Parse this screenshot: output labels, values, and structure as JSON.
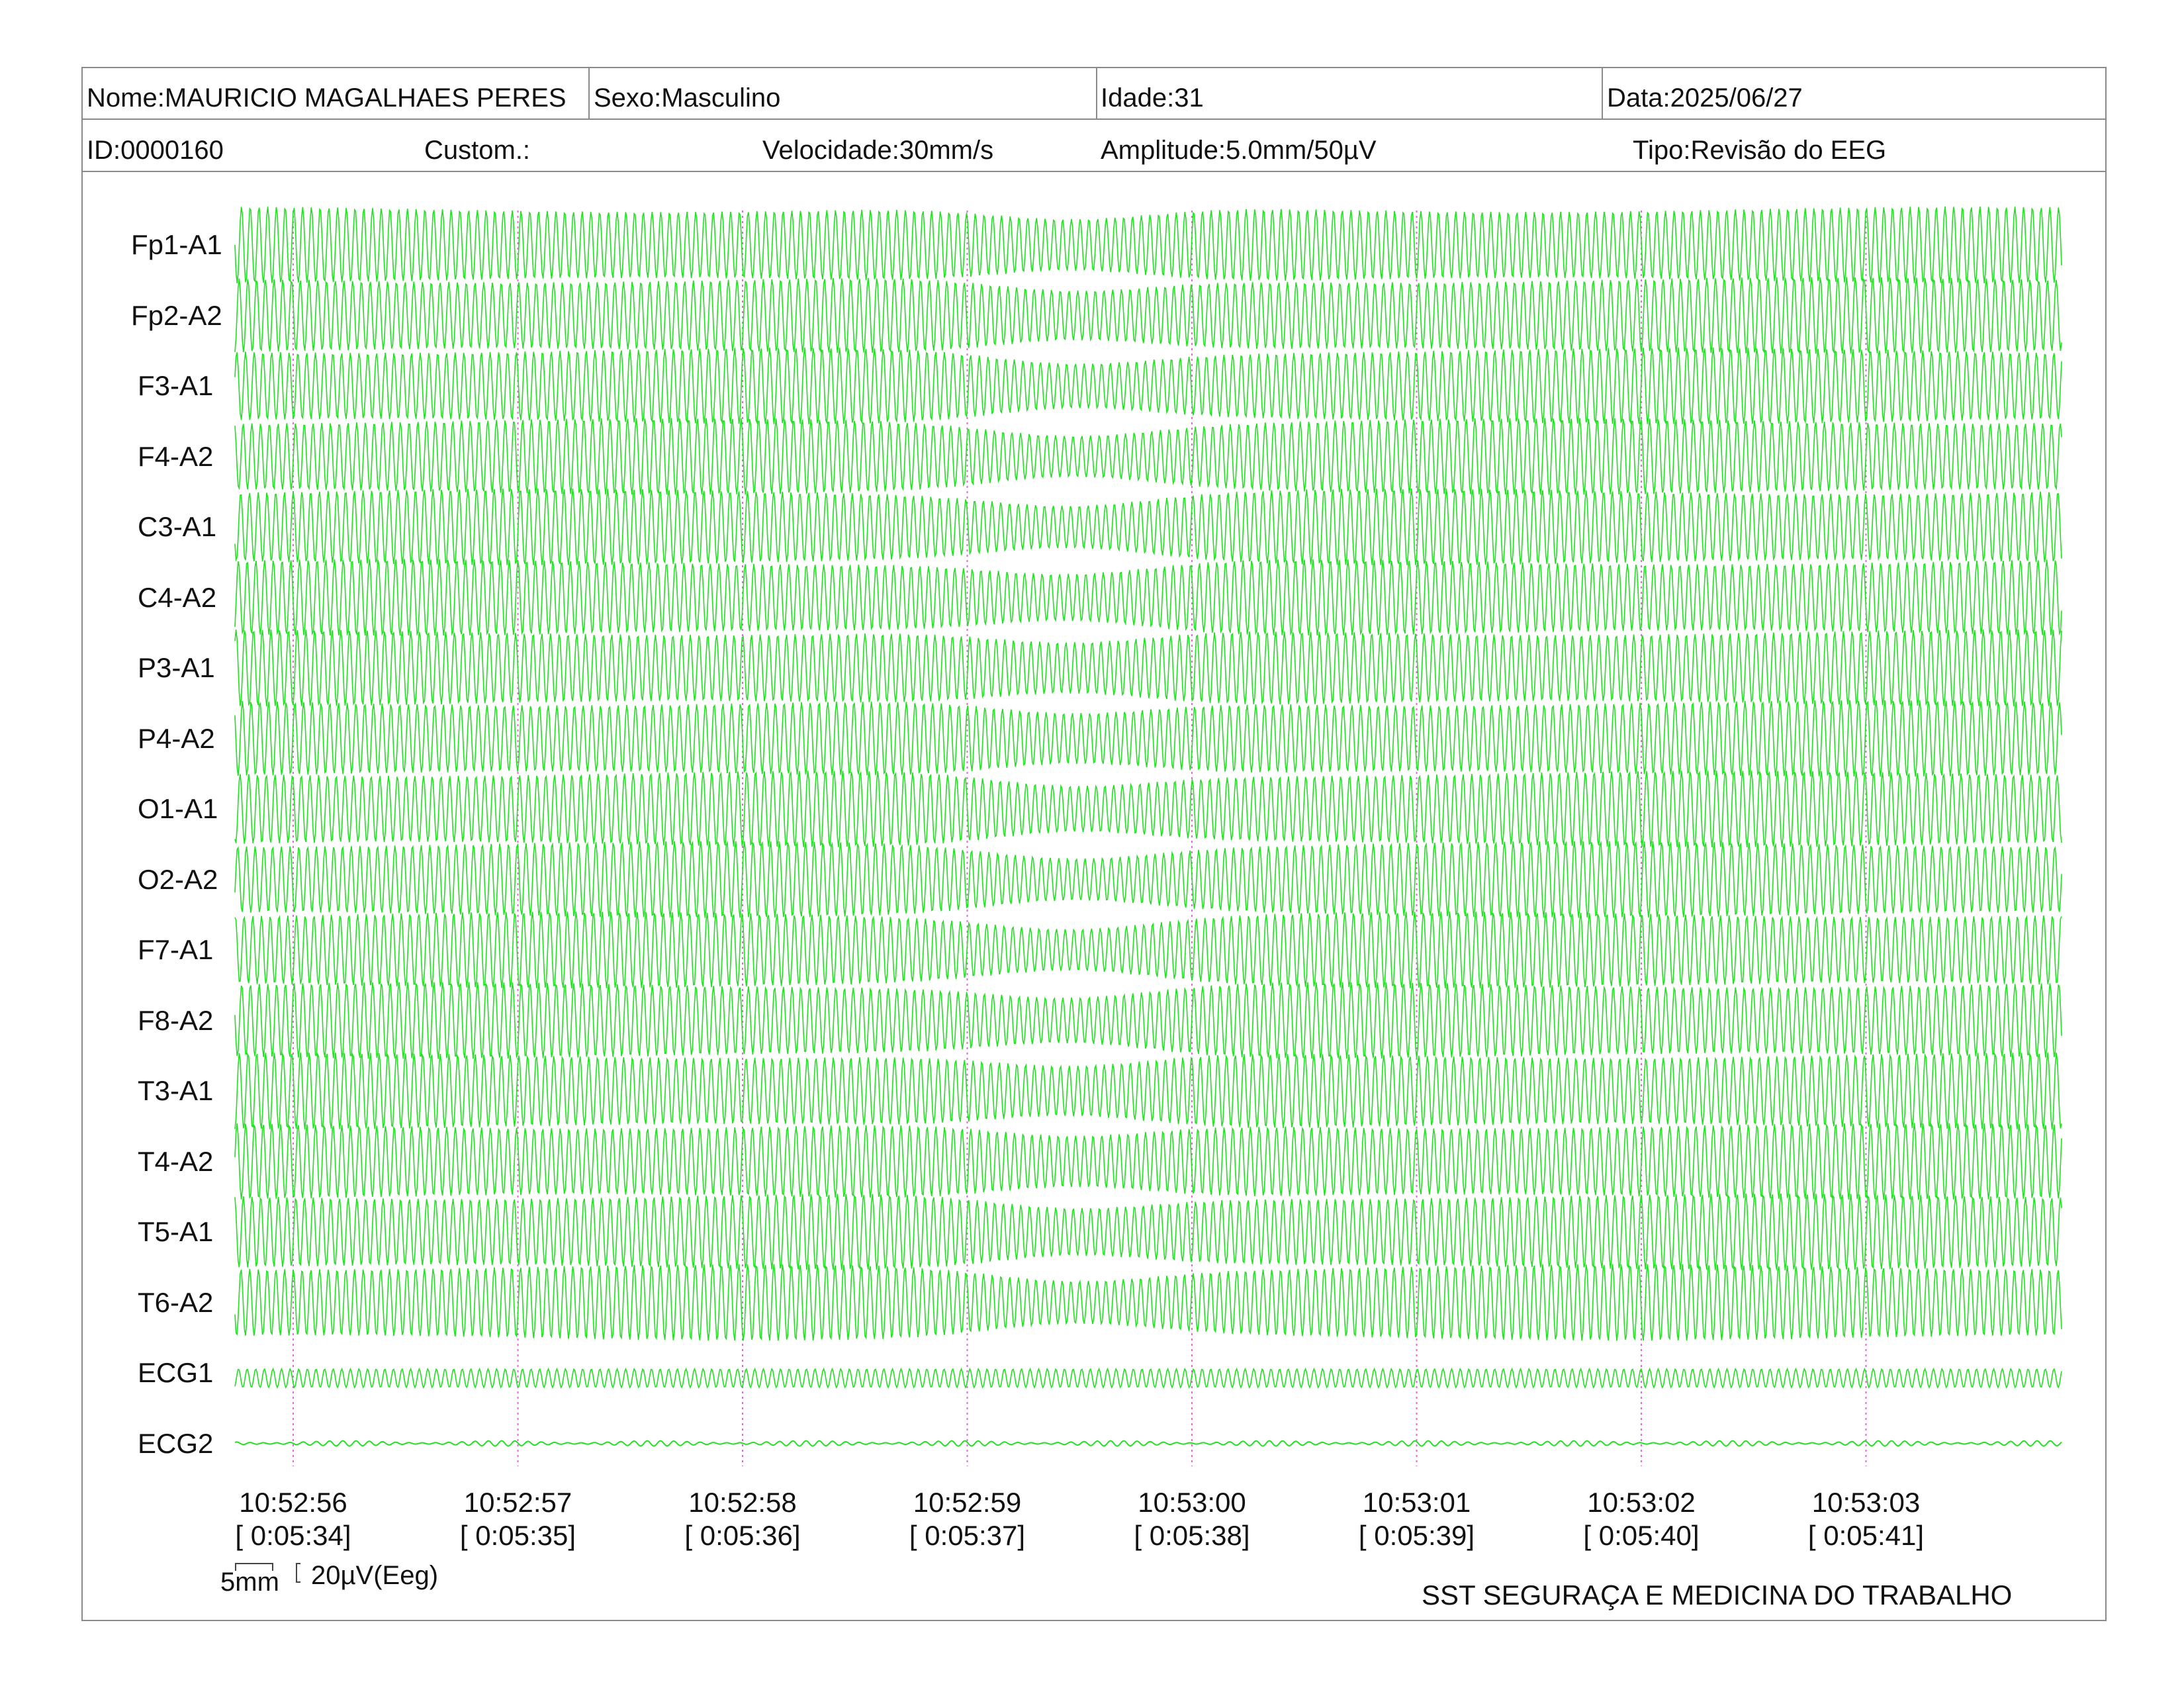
{
  "header": {
    "nome": "Nome:MAURICIO MAGALHAES PERES",
    "sexo": "Sexo:Masculino",
    "idade": "Idade:31",
    "data": "Data:2025/06/27",
    "id": "ID:0000160",
    "custom": "Custom.:",
    "velocidade": "Velocidade:30mm/s",
    "amplitude": "Amplitude:5.0mm/50µV",
    "tipo": "Tipo:Revisão do EEG"
  },
  "channels": [
    "Fp1-A1",
    "Fp2-A2",
    "F3-A1",
    "F4-A2",
    "C3-A1",
    "C4-A2",
    "P3-A1",
    "P4-A2",
    "O1-A1",
    "O2-A2",
    "F7-A1",
    "F8-A2",
    "T3-A1",
    "T4-A2",
    "T5-A1",
    "T6-A2",
    "ECG1",
    "ECG2"
  ],
  "time_markers": [
    {
      "time": "10:52:56",
      "elapsed": "[ 0:05:34]"
    },
    {
      "time": "10:52:57",
      "elapsed": "[ 0:05:35]"
    },
    {
      "time": "10:52:58",
      "elapsed": "[ 0:05:36]"
    },
    {
      "time": "10:52:59",
      "elapsed": "[ 0:05:37]"
    },
    {
      "time": "10:53:00",
      "elapsed": "[ 0:05:38]"
    },
    {
      "time": "10:53:01",
      "elapsed": "[ 0:05:39]"
    },
    {
      "time": "10:53:02",
      "elapsed": "[ 0:05:40]"
    },
    {
      "time": "10:53:03",
      "elapsed": "[ 0:05:41]"
    }
  ],
  "scale": {
    "time_scale": "5mm",
    "amp_scale": "20µV(Eeg)"
  },
  "footer": {
    "org": "SST SEGURAÇA E MEDICINA DO TRABALHO"
  },
  "colors": {
    "trace": "#22e022",
    "marker": "#d070d0",
    "border": "#8a8a8a"
  }
}
